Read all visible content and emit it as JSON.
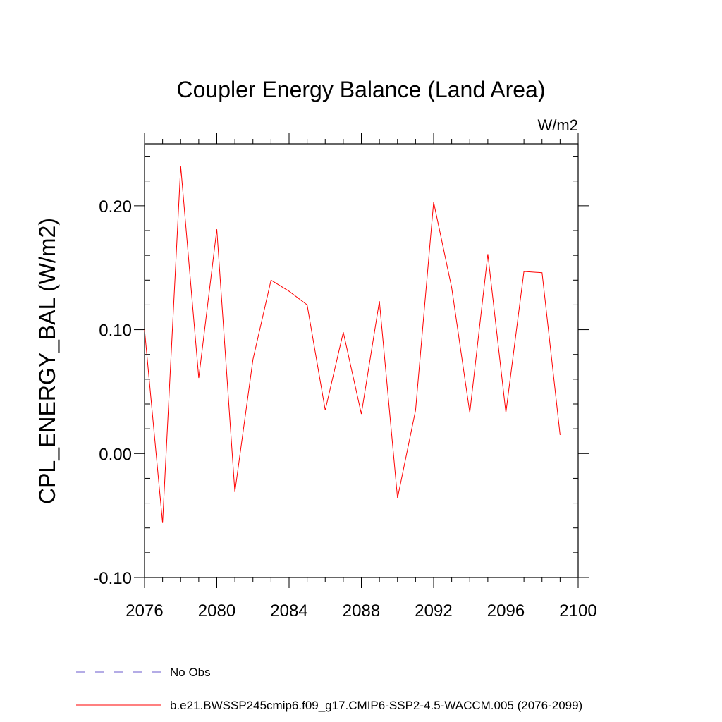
{
  "chart_data": {
    "type": "line",
    "title": "Coupler Energy Balance (Land Area)",
    "units": "W/m2",
    "xlabel": "",
    "ylabel": "CPL_ENERGY_BAL  (W/m2)",
    "xlim": [
      2076,
      2100
    ],
    "ylim": [
      -0.1,
      0.25
    ],
    "x_ticks": [
      2076,
      2080,
      2084,
      2088,
      2092,
      2096,
      2100
    ],
    "x_tick_labels": [
      "2076",
      "2080",
      "2084",
      "2088",
      "2092",
      "2096",
      "2100"
    ],
    "y_ticks": [
      -0.1,
      0.0,
      0.1,
      0.2
    ],
    "y_tick_labels": [
      "-0.10",
      "0.00",
      "0.10",
      "0.20"
    ],
    "grid": false,
    "legend_position": "bottom",
    "series": [
      {
        "name": "No Obs",
        "color": "#6a5acd",
        "dash": "dashed",
        "x": [],
        "values": []
      },
      {
        "name": "b.e21.BWSSP245cmip6.f09_g17.CMIP6-SSP2-4.5-WACCM.005 (2076-2099)",
        "color": "#ff0000",
        "dash": "solid",
        "x": [
          2076,
          2077,
          2078,
          2079,
          2080,
          2081,
          2082,
          2083,
          2084,
          2085,
          2086,
          2087,
          2088,
          2089,
          2090,
          2091,
          2092,
          2093,
          2094,
          2095,
          2096,
          2097,
          2098,
          2099
        ],
        "values": [
          0.1,
          -0.056,
          0.232,
          0.061,
          0.181,
          -0.031,
          0.076,
          0.14,
          0.131,
          0.12,
          0.035,
          0.098,
          0.032,
          0.123,
          -0.036,
          0.035,
          0.203,
          0.134,
          0.033,
          0.161,
          0.033,
          0.147,
          0.146,
          0.015
        ]
      }
    ]
  }
}
